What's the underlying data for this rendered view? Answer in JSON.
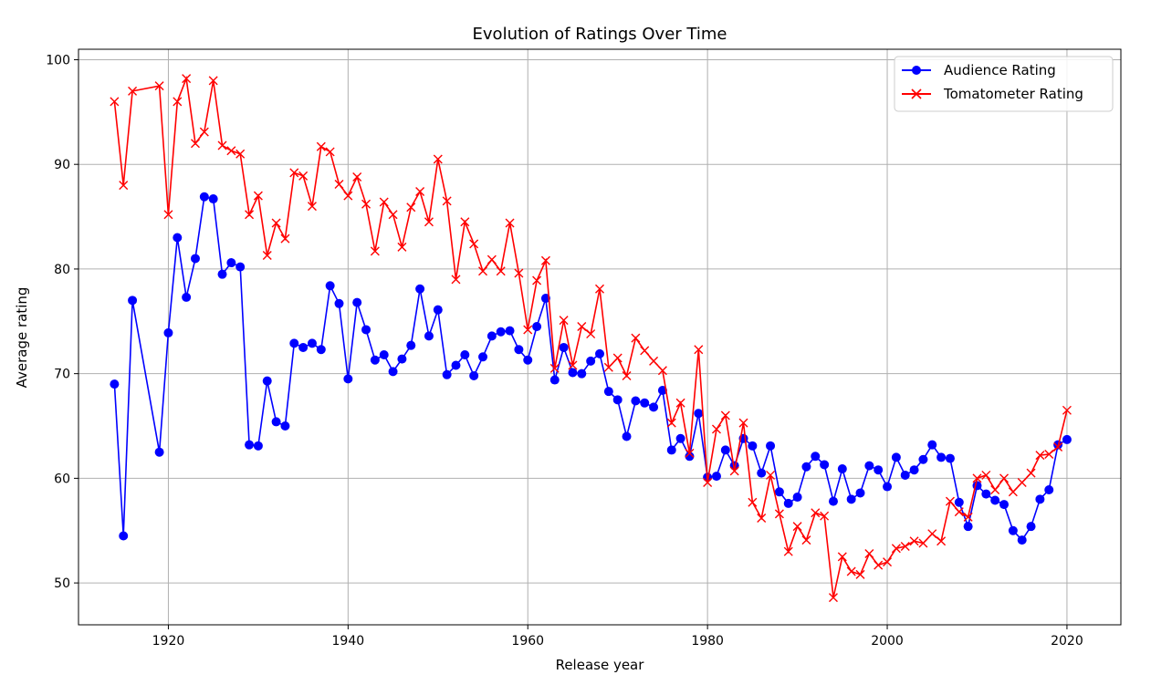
{
  "chart_data": {
    "type": "line",
    "title": "Evolution of Ratings Over Time",
    "xlabel": "Release year",
    "ylabel": "Average rating",
    "xlim": [
      1910,
      2026
    ],
    "ylim": [
      46,
      101
    ],
    "xticks": [
      1920,
      1940,
      1960,
      1980,
      2000,
      2020
    ],
    "yticks": [
      50,
      60,
      70,
      80,
      90,
      100
    ],
    "grid": true,
    "legend_position": "top-right",
    "x": [
      1914,
      1915,
      1916,
      1919,
      1920,
      1921,
      1922,
      1923,
      1924,
      1925,
      1926,
      1927,
      1928,
      1929,
      1930,
      1931,
      1932,
      1933,
      1934,
      1935,
      1936,
      1937,
      1938,
      1939,
      1940,
      1941,
      1942,
      1943,
      1944,
      1945,
      1946,
      1947,
      1948,
      1949,
      1950,
      1951,
      1952,
      1953,
      1954,
      1955,
      1956,
      1957,
      1958,
      1959,
      1960,
      1961,
      1962,
      1963,
      1964,
      1965,
      1966,
      1967,
      1968,
      1969,
      1970,
      1971,
      1972,
      1973,
      1974,
      1975,
      1976,
      1977,
      1978,
      1979,
      1980,
      1981,
      1982,
      1983,
      1984,
      1985,
      1986,
      1987,
      1988,
      1989,
      1990,
      1991,
      1992,
      1993,
      1994,
      1995,
      1996,
      1997,
      1998,
      1999,
      2000,
      2001,
      2002,
      2003,
      2004,
      2005,
      2006,
      2007,
      2008,
      2009,
      2010,
      2011,
      2012,
      2013,
      2014,
      2015,
      2016,
      2017,
      2018,
      2019,
      2020
    ],
    "series": [
      {
        "name": "Audience Rating",
        "color": "#0000ff",
        "marker": "circle",
        "values": [
          69.0,
          54.5,
          77.0,
          62.5,
          73.9,
          83.0,
          77.3,
          81.0,
          86.9,
          86.7,
          79.5,
          80.6,
          80.2,
          63.2,
          63.1,
          69.3,
          65.4,
          65.0,
          72.9,
          72.5,
          72.9,
          72.3,
          78.4,
          76.7,
          69.5,
          76.8,
          74.2,
          71.3,
          71.8,
          70.2,
          71.4,
          72.7,
          78.1,
          73.6,
          76.1,
          69.9,
          70.8,
          71.8,
          69.8,
          71.6,
          73.6,
          74.0,
          74.1,
          72.3,
          71.3,
          74.5,
          77.2,
          69.4,
          72.5,
          70.1,
          70.0,
          71.2,
          71.9,
          68.3,
          67.5,
          64.0,
          67.4,
          67.2,
          66.8,
          68.4,
          62.7,
          63.8,
          62.1,
          66.2,
          60.1,
          60.2,
          62.7,
          61.2,
          63.8,
          63.1,
          60.5,
          63.1,
          58.7,
          57.6,
          58.2,
          61.1,
          62.1,
          61.3,
          57.8,
          60.9,
          58.0,
          58.6,
          61.2,
          60.8,
          59.2,
          62.0,
          60.3,
          60.8,
          61.8,
          63.2,
          62.0,
          61.9,
          57.7,
          55.4,
          59.3,
          58.5,
          57.9,
          57.5,
          55.0,
          54.1,
          55.4,
          58.0,
          58.9,
          63.2,
          63.7
        ]
      },
      {
        "name": "Tomatometer Rating",
        "color": "#ff0000",
        "marker": "x",
        "values": [
          96.0,
          88.0,
          97.0,
          97.5,
          85.2,
          96.0,
          98.2,
          92.0,
          93.1,
          98.0,
          91.8,
          91.3,
          91.0,
          85.2,
          87.0,
          81.3,
          84.4,
          82.9,
          89.2,
          88.9,
          86.0,
          91.7,
          91.2,
          88.1,
          87.0,
          88.8,
          86.2,
          81.7,
          86.4,
          85.2,
          82.1,
          85.9,
          87.4,
          84.5,
          90.5,
          86.5,
          79.0,
          84.5,
          82.4,
          79.8,
          80.9,
          79.8,
          84.4,
          79.6,
          74.2,
          78.9,
          80.8,
          70.5,
          75.1,
          70.8,
          74.5,
          73.8,
          78.1,
          70.6,
          71.5,
          69.8,
          73.4,
          72.2,
          71.2,
          70.3,
          65.3,
          67.2,
          62.4,
          72.3,
          59.6,
          64.7,
          66.0,
          60.7,
          65.3,
          57.7,
          56.2,
          60.3,
          56.6,
          53.0,
          55.4,
          54.1,
          56.7,
          56.4,
          48.6,
          52.5,
          51.1,
          50.8,
          52.8,
          51.7,
          52.0,
          53.3,
          53.5,
          54.0,
          53.8,
          54.7,
          54.0,
          57.8,
          56.8,
          56.3,
          60.0,
          60.3,
          58.9,
          60.0,
          58.7,
          59.6,
          60.5,
          62.2,
          62.3,
          63.0,
          66.5
        ]
      }
    ]
  }
}
